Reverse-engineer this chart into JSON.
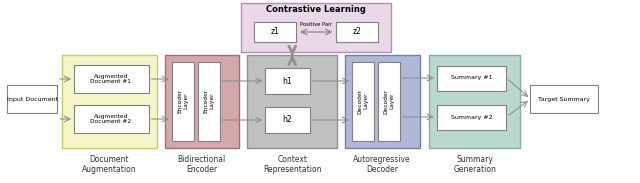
{
  "figsize": [
    6.4,
    1.83
  ],
  "dpi": 100,
  "colors": {
    "bg_color": "#ffffff",
    "doc_aug": "#f5f5c8",
    "doc_aug_border": "#c8c87a",
    "bidir_enc": "#d4a8a8",
    "bidir_enc_border": "#a07070",
    "context_rep": "#c0c0c0",
    "context_rep_border": "#909090",
    "autodec": "#b0b8d8",
    "autodec_border": "#7080b0",
    "sum_gen": "#b8d8d0",
    "sum_gen_border": "#80b0a8",
    "contrastive": "#e8d8e8",
    "contrastive_border": "#b090b0",
    "box_white": "#ffffff",
    "box_border": "#808080",
    "arrow": "#909090",
    "text_label": "#333333"
  },
  "labels": {
    "input_doc": "Input Document",
    "aug1": "Augmented\nDocument #1",
    "aug2": "Augmented\nDocument #2",
    "enc1": "Encoder\nLayer",
    "enc2": "Encoder\nLayer",
    "h1": "h1",
    "h2": "h2",
    "dec1": "Decoder\nLayer",
    "dec2": "Decoder\nLayer",
    "sum1": "Summary #1",
    "sum2": "Summary #2",
    "target": "Target Summary",
    "z1": "z1",
    "z2": "z2",
    "pos_pair": "Positive Pair",
    "contrastive": "Contrastive Learning",
    "doc_aug_title": "Document\nAugmentation",
    "bidir_enc_title": "Bidirectional\nEncoder",
    "context_rep_title": "Context\nRepresentation",
    "autodec_title": "Autoregressive\nDecoder",
    "sum_gen_title": "Summary\nGeneration"
  }
}
